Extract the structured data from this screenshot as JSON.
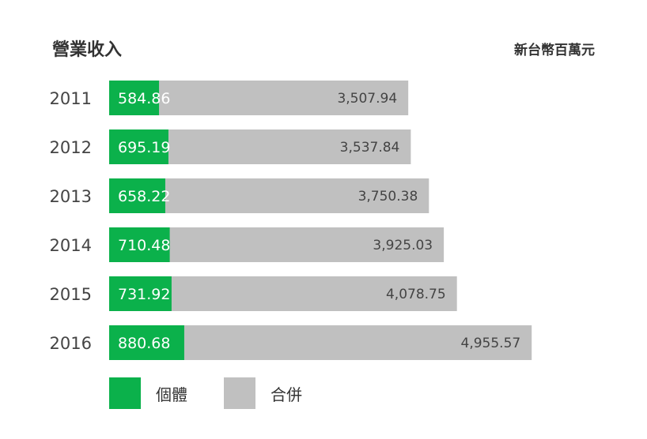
{
  "chart_data": {
    "type": "bar",
    "orientation": "horizontal",
    "title": "營業收入",
    "unit_label": "新台幣百萬元",
    "categories": [
      "2011",
      "2012",
      "2013",
      "2014",
      "2015",
      "2016"
    ],
    "series": [
      {
        "name": "個體",
        "color": "#0bb14b",
        "values": [
          584.86,
          695.19,
          658.22,
          710.48,
          731.92,
          880.68
        ],
        "labels": [
          "584.86",
          "695.19",
          "658.22",
          "710.48",
          "731.92",
          "880.68"
        ]
      },
      {
        "name": "合併",
        "color": "#c0c0c0",
        "values": [
          3507.94,
          3537.84,
          3750.38,
          3925.03,
          4078.75,
          4955.57
        ],
        "labels": [
          "3,507.94",
          "3,537.84",
          "3,750.38",
          "3,925.03",
          "4,078.75",
          "4,955.57"
        ]
      }
    ],
    "overlay": true,
    "grid": false,
    "legend_position": "bottom-left"
  }
}
